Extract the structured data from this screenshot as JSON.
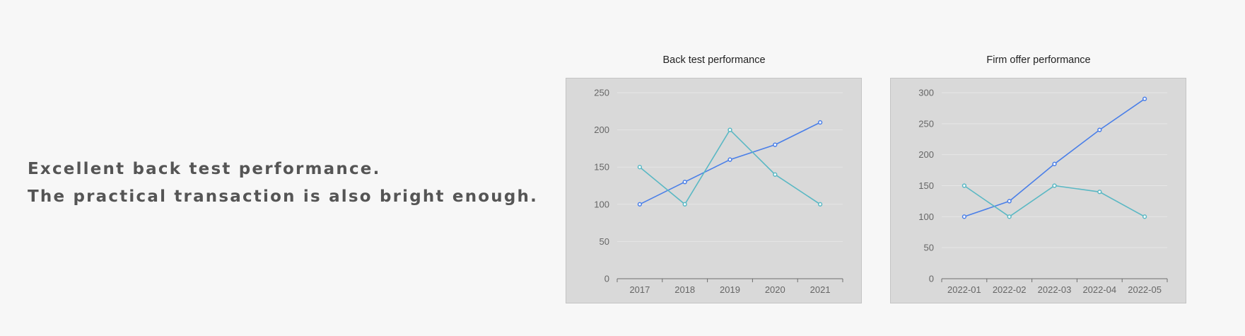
{
  "tagline": {
    "line1": "Excellent back test performance.",
    "line2": "The practical transaction is also bright enough."
  },
  "colors": {
    "series_blue": "#4a7fe8",
    "series_teal": "#5ab8c4",
    "panel_bg": "#d9d9d9",
    "page_bg": "#f7f7f7",
    "grid": "#e6e6e6",
    "text": "#555555"
  },
  "chart_data": [
    {
      "type": "line",
      "title": "Back test performance",
      "categories": [
        "2017",
        "2018",
        "2019",
        "2020",
        "2021"
      ],
      "series": [
        {
          "values": [
            100,
            130,
            160,
            180,
            210
          ],
          "color": "#4a7fe8"
        },
        {
          "values": [
            150,
            100,
            200,
            140,
            100
          ],
          "color": "#5ab8c4"
        }
      ],
      "ylim": [
        0,
        250
      ],
      "yticks": [
        0,
        50,
        100,
        150,
        200,
        250
      ],
      "grid": true,
      "xlabel": "",
      "ylabel": ""
    },
    {
      "type": "line",
      "title": "Firm offer performance",
      "categories": [
        "2022-01",
        "2022-02",
        "2022-03",
        "2022-04",
        "2022-05"
      ],
      "series": [
        {
          "values": [
            100,
            125,
            185,
            240,
            290
          ],
          "color": "#4a7fe8"
        },
        {
          "values": [
            150,
            100,
            150,
            140,
            100
          ],
          "color": "#5ab8c4"
        }
      ],
      "ylim": [
        0,
        300
      ],
      "yticks": [
        0,
        50,
        100,
        150,
        200,
        250,
        300
      ],
      "grid": true,
      "xlabel": "",
      "ylabel": ""
    }
  ]
}
